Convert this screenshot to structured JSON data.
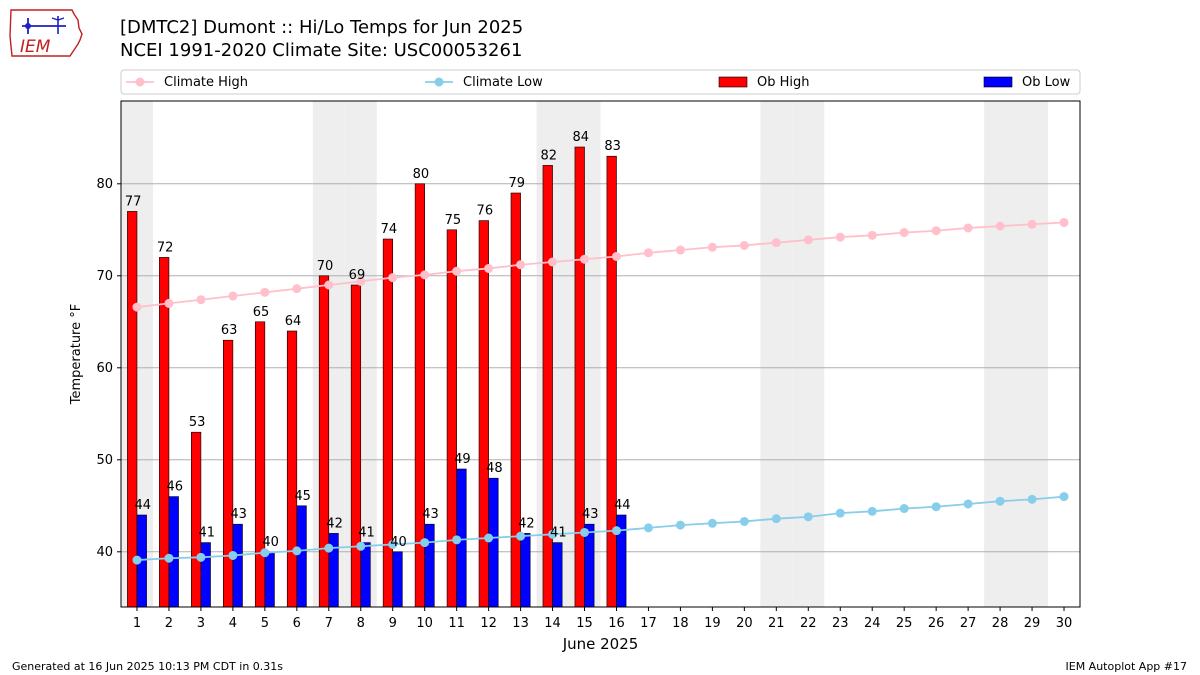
{
  "header": {
    "title_line1": "[DMTC2] Dumont :: Hi/Lo Temps for Jun 2025",
    "title_line2": "NCEI 1991-2020 Climate Site: USC00053261"
  },
  "logo": {
    "text": "IEM",
    "icon": "iem-iowa-logo"
  },
  "footer": {
    "left": "Generated at 16 Jun 2025 10:13 PM CDT in 0.31s",
    "right": "IEM Autoplot App #17"
  },
  "chart_data": {
    "type": "bar",
    "xlabel": "June 2025",
    "ylabel": "Temperature °F",
    "xlim": [
      0.5,
      30.5
    ],
    "ylim": [
      34,
      89
    ],
    "yticks": [
      40,
      50,
      60,
      70,
      80
    ],
    "grid": "horizontal",
    "legend_placement": "top",
    "weekend_shading_days": [
      1,
      7,
      8,
      14,
      15,
      21,
      22,
      28,
      29
    ],
    "days": [
      1,
      2,
      3,
      4,
      5,
      6,
      7,
      8,
      9,
      10,
      11,
      12,
      13,
      14,
      15,
      16,
      17,
      18,
      19,
      20,
      21,
      22,
      23,
      24,
      25,
      26,
      27,
      28,
      29,
      30
    ],
    "series": [
      {
        "name": "Climate High",
        "kind": "line",
        "color": "#ffc0cb",
        "values": [
          66.6,
          67.0,
          67.4,
          67.8,
          68.2,
          68.6,
          69.0,
          69.4,
          69.8,
          70.1,
          70.5,
          70.8,
          71.2,
          71.5,
          71.8,
          72.1,
          72.5,
          72.8,
          73.1,
          73.3,
          73.6,
          73.9,
          74.2,
          74.4,
          74.7,
          74.9,
          75.2,
          75.4,
          75.6,
          75.8
        ]
      },
      {
        "name": "Climate Low",
        "kind": "line",
        "color": "#87ceeb",
        "values": [
          39.1,
          39.3,
          39.4,
          39.6,
          39.9,
          40.1,
          40.4,
          40.6,
          40.8,
          41.0,
          41.3,
          41.5,
          41.7,
          41.9,
          42.1,
          42.3,
          42.6,
          42.9,
          43.1,
          43.3,
          43.6,
          43.8,
          44.2,
          44.4,
          44.7,
          44.9,
          45.2,
          45.5,
          45.7,
          46.0
        ]
      },
      {
        "name": "Ob High",
        "kind": "bar",
        "color": "#ff0000",
        "values": [
          77,
          72,
          53,
          63,
          65,
          64,
          70,
          69,
          74,
          80,
          75,
          76,
          79,
          82,
          84,
          83
        ]
      },
      {
        "name": "Ob Low",
        "kind": "bar",
        "color": "#0000ff",
        "values": [
          44,
          46,
          41,
          43,
          40,
          45,
          42,
          41,
          40,
          43,
          49,
          48,
          42,
          41,
          43,
          44
        ]
      }
    ]
  }
}
